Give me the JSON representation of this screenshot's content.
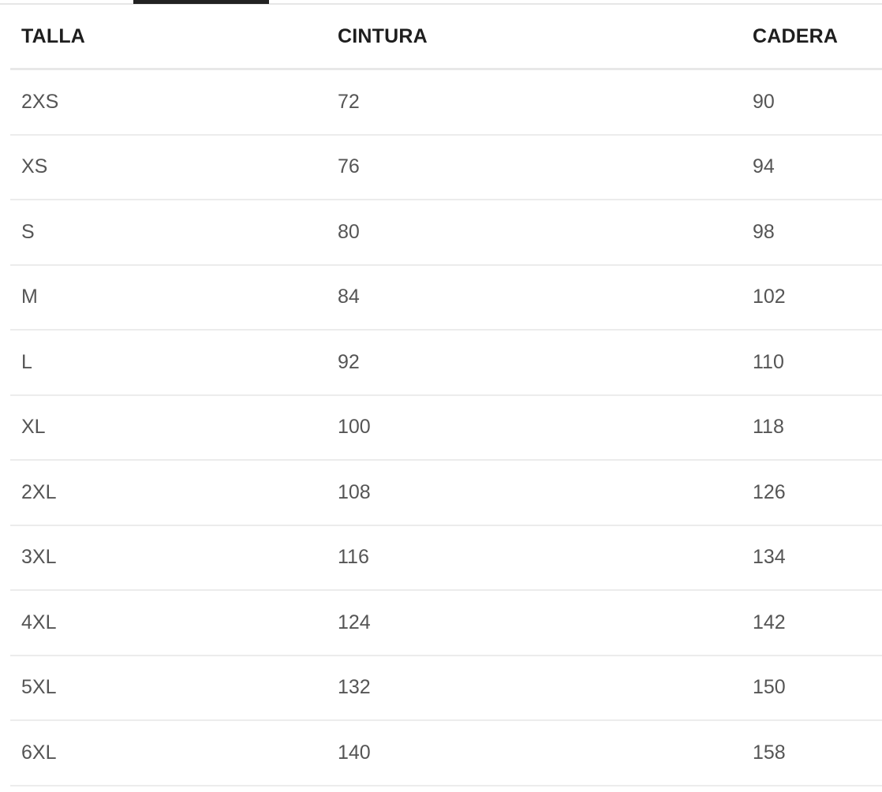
{
  "headers": [
    "TALLA",
    "CINTURA",
    "CADERA"
  ],
  "rows": [
    [
      "2XS",
      "72",
      "90"
    ],
    [
      "XS",
      "76",
      "94"
    ],
    [
      "S",
      "80",
      "98"
    ],
    [
      "M",
      "84",
      "102"
    ],
    [
      "L",
      "92",
      "110"
    ],
    [
      "XL",
      "100",
      "118"
    ],
    [
      "2XL",
      "108",
      "126"
    ],
    [
      "3XL",
      "116",
      "134"
    ],
    [
      "4XL",
      "124",
      "142"
    ],
    [
      "5XL",
      "132",
      "150"
    ],
    [
      "6XL",
      "140",
      "158"
    ]
  ]
}
